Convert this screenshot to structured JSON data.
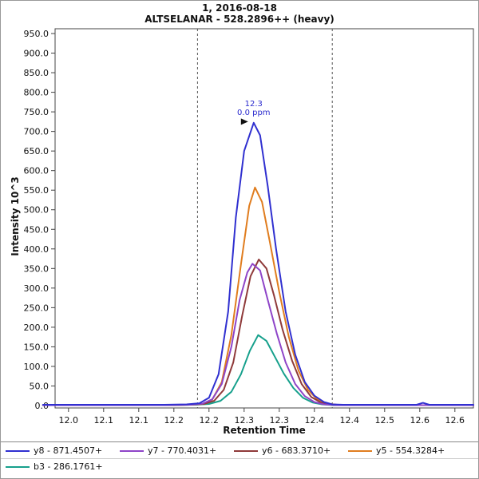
{
  "window": {
    "title_line1": "1, 2016-08-18",
    "title_line2": "ALTSELANAR - 528.2896++ (heavy)"
  },
  "chart_data": {
    "type": "line",
    "title": "1, 2016-08-18",
    "subtitle": "ALTSELANAR - 528.2896++ (heavy)",
    "xlabel": "Retention Time",
    "ylabel": "Intensity 10^3",
    "grid": false,
    "legend_position": "bottom",
    "x_axis": {
      "min": 11.979,
      "max": 12.634,
      "tick_start": 12.0,
      "tick_step": 0.055,
      "tick_labels": [
        "12.0",
        "12.1",
        "12.1",
        "12.2",
        "12.2",
        "12.3",
        "12.3",
        "12.4",
        "12.4",
        "12.5",
        "12.6",
        "12.6"
      ]
    },
    "y_axis": {
      "min": 0,
      "max": 950,
      "tick_step": 50,
      "tick_labels": [
        "0.0",
        "50.0",
        "100.0",
        "150.0",
        "200.0",
        "250.0",
        "300.0",
        "350.0",
        "400.0",
        "450.0",
        "500.0",
        "550.0",
        "600.0",
        "650.0",
        "700.0",
        "750.0",
        "800.0",
        "850.0",
        "900.0",
        "950.0"
      ]
    },
    "peak_boundaries": [
      12.202,
      12.413
    ],
    "annotation": {
      "rt": "12.3",
      "ppm": "0.0 ppm",
      "x": 12.29,
      "y": 725
    },
    "series": [
      {
        "name": "y8 - 871.4507+",
        "color": "#3030d0",
        "points": [
          [
            11.96,
            2
          ],
          [
            12.05,
            2
          ],
          [
            12.15,
            2
          ],
          [
            12.185,
            3
          ],
          [
            12.205,
            6
          ],
          [
            12.22,
            20
          ],
          [
            12.235,
            80
          ],
          [
            12.25,
            240
          ],
          [
            12.262,
            480
          ],
          [
            12.275,
            650
          ],
          [
            12.29,
            722
          ],
          [
            12.3,
            690
          ],
          [
            12.312,
            560
          ],
          [
            12.325,
            400
          ],
          [
            12.34,
            240
          ],
          [
            12.355,
            130
          ],
          [
            12.37,
            60
          ],
          [
            12.385,
            25
          ],
          [
            12.4,
            9
          ],
          [
            12.413,
            3
          ],
          [
            12.43,
            2
          ],
          [
            12.5,
            2
          ],
          [
            12.545,
            2
          ],
          [
            12.555,
            7
          ],
          [
            12.565,
            2
          ],
          [
            12.634,
            2
          ]
        ]
      },
      {
        "name": "y7 - 770.4031+",
        "color": "#8e44c8",
        "points": [
          [
            11.96,
            1
          ],
          [
            12.15,
            1
          ],
          [
            12.19,
            2
          ],
          [
            12.21,
            5
          ],
          [
            12.225,
            16
          ],
          [
            12.24,
            55
          ],
          [
            12.255,
            150
          ],
          [
            12.268,
            270
          ],
          [
            12.28,
            340
          ],
          [
            12.288,
            362
          ],
          [
            12.3,
            345
          ],
          [
            12.312,
            270
          ],
          [
            12.326,
            185
          ],
          [
            12.34,
            110
          ],
          [
            12.355,
            55
          ],
          [
            12.37,
            24
          ],
          [
            12.385,
            9
          ],
          [
            12.4,
            3
          ],
          [
            12.42,
            1
          ],
          [
            12.634,
            1
          ]
        ]
      },
      {
        "name": "y6 - 683.3710+",
        "color": "#8f3a3a",
        "points": [
          [
            11.96,
            1
          ],
          [
            12.15,
            1
          ],
          [
            12.19,
            2
          ],
          [
            12.212,
            4
          ],
          [
            12.228,
            12
          ],
          [
            12.243,
            40
          ],
          [
            12.258,
            110
          ],
          [
            12.272,
            230
          ],
          [
            12.285,
            330
          ],
          [
            12.298,
            373
          ],
          [
            12.31,
            350
          ],
          [
            12.322,
            280
          ],
          [
            12.335,
            195
          ],
          [
            12.35,
            115
          ],
          [
            12.365,
            55
          ],
          [
            12.38,
            22
          ],
          [
            12.395,
            8
          ],
          [
            12.41,
            3
          ],
          [
            12.43,
            1
          ],
          [
            12.634,
            1
          ]
        ]
      },
      {
        "name": "y5 - 554.3284+",
        "color": "#e07d1f",
        "points": [
          [
            11.96,
            1
          ],
          [
            12.15,
            1
          ],
          [
            12.19,
            2
          ],
          [
            12.21,
            4
          ],
          [
            12.225,
            15
          ],
          [
            12.24,
            60
          ],
          [
            12.255,
            180
          ],
          [
            12.27,
            360
          ],
          [
            12.283,
            510
          ],
          [
            12.292,
            557
          ],
          [
            12.303,
            520
          ],
          [
            12.315,
            420
          ],
          [
            12.33,
            290
          ],
          [
            12.345,
            175
          ],
          [
            12.36,
            90
          ],
          [
            12.375,
            40
          ],
          [
            12.39,
            15
          ],
          [
            12.405,
            5
          ],
          [
            12.42,
            2
          ],
          [
            12.5,
            1
          ],
          [
            12.634,
            1
          ]
        ]
      },
      {
        "name": "b3 - 286.1761+",
        "color": "#16a08c",
        "points": [
          [
            11.96,
            1
          ],
          [
            12.15,
            1
          ],
          [
            12.2,
            2
          ],
          [
            12.22,
            4
          ],
          [
            12.238,
            12
          ],
          [
            12.255,
            35
          ],
          [
            12.27,
            80
          ],
          [
            12.284,
            140
          ],
          [
            12.297,
            180
          ],
          [
            12.31,
            165
          ],
          [
            12.323,
            125
          ],
          [
            12.337,
            82
          ],
          [
            12.352,
            45
          ],
          [
            12.367,
            20
          ],
          [
            12.382,
            8
          ],
          [
            12.397,
            3
          ],
          [
            12.415,
            1
          ],
          [
            12.634,
            1
          ]
        ]
      }
    ]
  },
  "legend": {
    "items": [
      {
        "label": "y8 - 871.4507+",
        "color": "#3030d0"
      },
      {
        "label": "y7 - 770.4031+",
        "color": "#8e44c8"
      },
      {
        "label": "y6 - 683.3710+",
        "color": "#8f3a3a"
      },
      {
        "label": "y5 - 554.3284+",
        "color": "#e07d1f"
      },
      {
        "label": "b3 - 286.1761+",
        "color": "#16a08c"
      }
    ]
  }
}
